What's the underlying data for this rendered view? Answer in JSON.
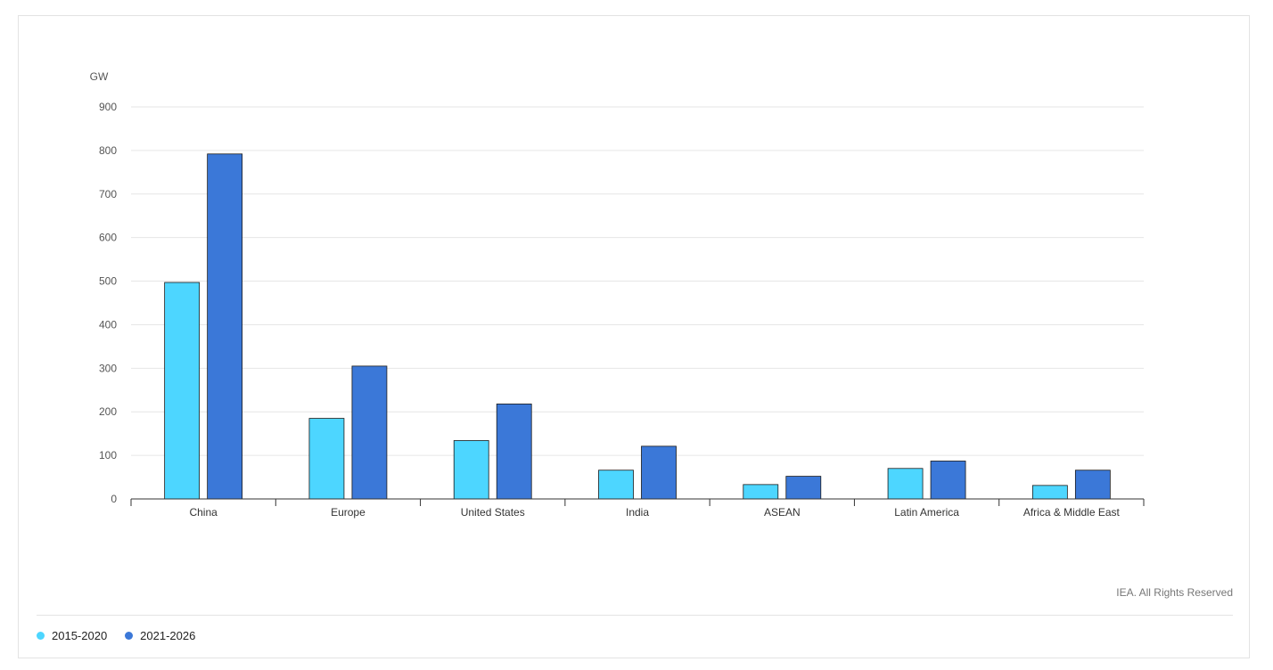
{
  "chart_data": {
    "type": "bar",
    "unit_label": "GW",
    "categories": [
      "China",
      "Europe",
      "United States",
      "India",
      "ASEAN",
      "Latin America",
      "Africa & Middle East"
    ],
    "series": [
      {
        "name": "2015-2020",
        "color": "#4dd6ff",
        "values": [
          497,
          185,
          134,
          66,
          33,
          70,
          31
        ]
      },
      {
        "name": "2021-2026",
        "color": "#3b78d8",
        "values": [
          792,
          305,
          218,
          121,
          52,
          87,
          66
        ]
      }
    ],
    "ylim": [
      0,
      900
    ],
    "yticks": [
      0,
      100,
      200,
      300,
      400,
      500,
      600,
      700,
      800,
      900
    ],
    "grid": true
  },
  "credit": "IEA. All Rights Reserved"
}
